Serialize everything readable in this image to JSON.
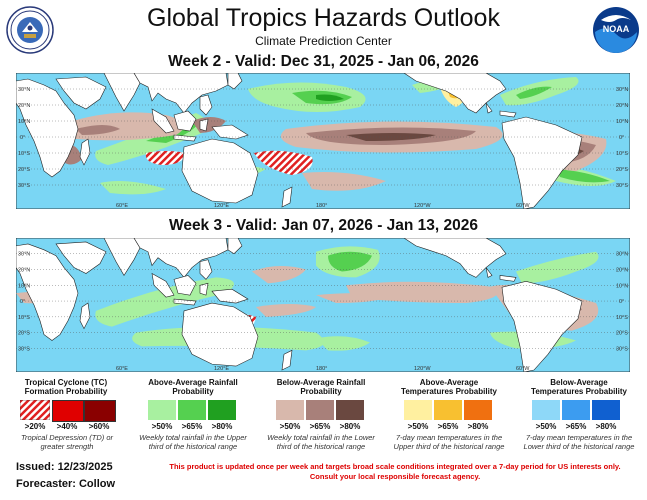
{
  "header": {
    "title": "Global Tropics Hazards Outlook",
    "subtitle": "Climate Prediction Center",
    "left_logo": "us-department-of-commerce-seal",
    "right_logo": "noaa-logo",
    "right_logo_text": "NOAA"
  },
  "maps": [
    {
      "label": "Week 2 - Valid: Dec 31, 2025 - Jan 06, 2026"
    },
    {
      "label": "Week 3 - Valid: Jan 07, 2026 - Jan 13, 2026"
    }
  ],
  "axes": {
    "lat_left": [
      "30°N",
      "20°N",
      "10°N",
      "0°",
      "10°S",
      "20°S",
      "30°S"
    ],
    "lat_right": [
      "30°N",
      "20°N",
      "10°N",
      "0°",
      "10°S",
      "20°S",
      "30°S"
    ],
    "lon": [
      "60°E",
      "120°E",
      "180°",
      "120°W",
      "60°W"
    ]
  },
  "legend": {
    "tc": {
      "title": "Tropical Cyclone (TC) Formation Probability",
      "levels": [
        ">20%",
        ">40%",
        ">60%"
      ],
      "colors": [
        "#f03030",
        "#e00000",
        "#8a0000"
      ],
      "note": "Tropical Depression (TD) or greater strength"
    },
    "wet": {
      "title": "Above-Average Rainfall Probability",
      "levels": [
        ">50%",
        ">65%",
        ">80%"
      ],
      "colors": [
        "#a8f0a0",
        "#55d050",
        "#20a020"
      ],
      "note": "Weekly total rainfall in the Upper third of the historical range"
    },
    "dry": {
      "title": "Below-Average Rainfall Probability",
      "levels": [
        ">50%",
        ">65%",
        ">80%"
      ],
      "colors": [
        "#d8b8ac",
        "#a8807a",
        "#6a4840"
      ],
      "note": "Weekly total rainfall in the Lower third of the historical range"
    },
    "warm": {
      "title": "Above-Average Temperatures Probability",
      "levels": [
        ">50%",
        ">65%",
        ">80%"
      ],
      "colors": [
        "#fff0a0",
        "#f8c030",
        "#f07010"
      ],
      "note": "7-day mean temperatures in the Upper third of the historical range"
    },
    "cold": {
      "title": "Below-Average Temperatures Probability",
      "levels": [
        ">50%",
        ">65%",
        ">80%"
      ],
      "colors": [
        "#8ed8f8",
        "#3c9cf0",
        "#1060d0"
      ],
      "note": "7-day mean temperatures in the Lower third of the historical range"
    }
  },
  "footer": {
    "issued": "Issued: 12/23/2025",
    "forecaster": "Forecaster: Collow",
    "disclaimer_1": "This product is updated once per week and targets broad scale conditions integrated over a 7-day period for US interests only.",
    "disclaimer_2": "Consult your local responsible forecast agency."
  }
}
